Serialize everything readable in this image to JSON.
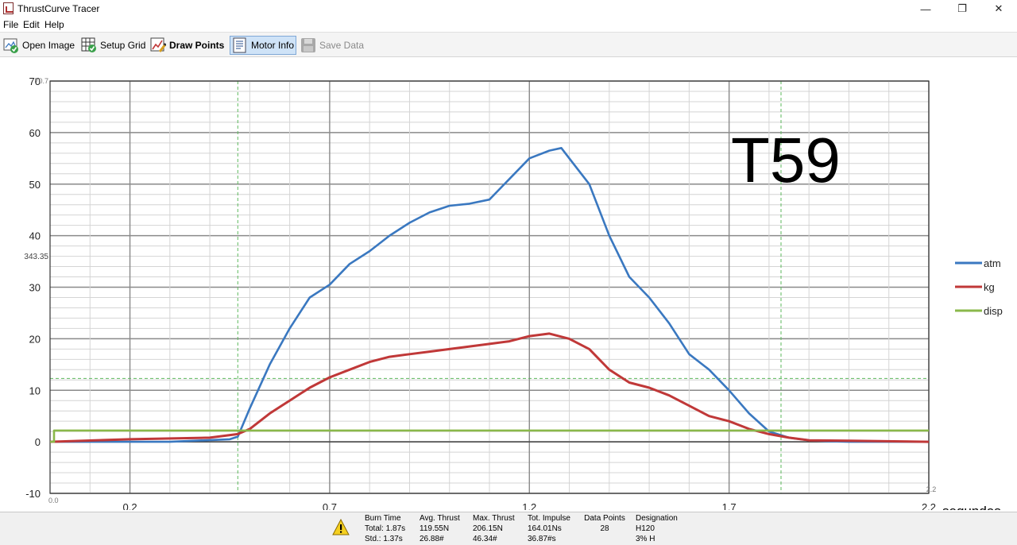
{
  "window": {
    "title": "ThrustCurve Tracer"
  },
  "menu": [
    "File",
    "Edit",
    "Help"
  ],
  "toolbar": {
    "open_image": "Open Image",
    "setup_grid": "Setup Grid",
    "draw_points": "Draw Points",
    "motor_info": "Motor Info",
    "save_data": "Save Data"
  },
  "icons": {
    "open": "open-image-icon",
    "grid": "setup-grid-icon",
    "draw": "draw-points-icon",
    "info": "motor-info-icon",
    "save": "save-data-icon",
    "warning": "warning-icon"
  },
  "chart_data": {
    "type": "line",
    "overlay_text": "T59",
    "xlabel": "segundos",
    "x_ticks": [
      0.2,
      0.7,
      1.2,
      1.7,
      2.2
    ],
    "x_tick_labels": [
      "0.2",
      "0.7",
      "1.2",
      "1.7",
      "2.2"
    ],
    "y_ticks": [
      70,
      60,
      50,
      40,
      30,
      20,
      10,
      0,
      -10
    ],
    "y_tick_labels": [
      "70",
      "60",
      "50",
      "40",
      "30",
      "20",
      "10",
      "0",
      "-10"
    ],
    "xlim": [
      0.0,
      2.2
    ],
    "ylim": [
      -10,
      70
    ],
    "grid": true,
    "corner_labels": {
      "top_left": "70.7",
      "bottom_left": "0.0",
      "bottom_right": "2.2"
    },
    "side_value_label": "343.35",
    "guide_lines": {
      "x": [
        0.47,
        1.83
      ],
      "y": [
        12.3
      ]
    },
    "legend_position": "right",
    "colors": {
      "atm": "#3a78c0",
      "kg": "#c03838",
      "disp": "#8ab84a"
    },
    "series": [
      {
        "name": "atm",
        "x": [
          0.0,
          0.3,
          0.45,
          0.47,
          0.5,
          0.55,
          0.6,
          0.65,
          0.7,
          0.75,
          0.8,
          0.85,
          0.9,
          0.95,
          1.0,
          1.05,
          1.1,
          1.15,
          1.2,
          1.25,
          1.28,
          1.3,
          1.35,
          1.4,
          1.45,
          1.5,
          1.55,
          1.6,
          1.65,
          1.7,
          1.75,
          1.8,
          1.85,
          1.9,
          1.95,
          2.0,
          2.2
        ],
        "y": [
          0.0,
          0.0,
          0.5,
          1.0,
          6.5,
          15.0,
          22.0,
          28.0,
          30.5,
          34.5,
          37.0,
          40.0,
          42.5,
          44.5,
          45.8,
          46.2,
          47.0,
          51.0,
          55.0,
          56.5,
          57.0,
          55.0,
          50.0,
          40.0,
          32.0,
          28.0,
          23.0,
          17.0,
          14.0,
          10.0,
          5.5,
          2.0,
          0.8,
          0.3,
          0.1,
          0.0,
          0.0
        ]
      },
      {
        "name": "kg",
        "x": [
          0.0,
          0.2,
          0.4,
          0.47,
          0.5,
          0.55,
          0.6,
          0.65,
          0.7,
          0.75,
          0.8,
          0.85,
          0.9,
          0.95,
          1.0,
          1.05,
          1.1,
          1.15,
          1.2,
          1.25,
          1.3,
          1.35,
          1.4,
          1.45,
          1.5,
          1.55,
          1.6,
          1.65,
          1.7,
          1.75,
          1.8,
          1.85,
          1.9,
          2.0,
          2.2
        ],
        "y": [
          0.0,
          0.5,
          0.8,
          1.5,
          2.5,
          5.5,
          8.0,
          10.5,
          12.5,
          14.0,
          15.5,
          16.5,
          17.0,
          17.5,
          18.0,
          18.5,
          19.0,
          19.5,
          20.5,
          21.0,
          20.0,
          18.0,
          14.0,
          11.5,
          10.5,
          9.0,
          7.0,
          5.0,
          4.0,
          2.5,
          1.5,
          0.8,
          0.3,
          0.2,
          0.0
        ]
      },
      {
        "name": "disp",
        "x": [
          0.0,
          0.01,
          0.01,
          2.2
        ],
        "y": [
          0.0,
          0.0,
          2.2,
          2.2
        ]
      }
    ]
  },
  "status": {
    "burn_time": {
      "header": "Burn Time",
      "total": "Total: 1.87s",
      "std": "Std.: 1.37s"
    },
    "avg_thrust": {
      "header": "Avg. Thrust",
      "total": "119.55N",
      "std": "26.88#"
    },
    "max_thrust": {
      "header": "Max. Thrust",
      "total": "206.15N",
      "std": "46.34#"
    },
    "tot_impulse": {
      "header": "Tot. Impulse",
      "total": "164.01Ns",
      "std": "36.87#s"
    },
    "data_points": {
      "header": "Data Points",
      "total": "28"
    },
    "designation": {
      "header": "Designation",
      "total": "H120",
      "std": "3% H"
    }
  }
}
